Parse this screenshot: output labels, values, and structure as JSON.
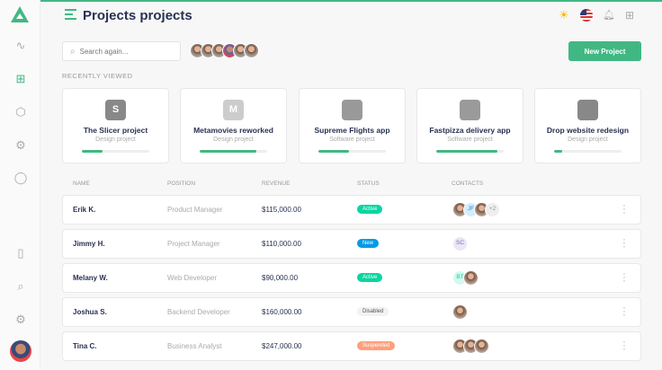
{
  "header": {
    "title": "Projects projects",
    "search_placeholder": "Search again...",
    "new_project": "New Project"
  },
  "recently_viewed_label": "RECENTLY VIEWED",
  "projects": [
    {
      "name": "The Slicer project",
      "type": "Design project",
      "icon": "S",
      "icon_color": "#888888",
      "progress": 31
    },
    {
      "name": "Metamovies reworked",
      "type": "Design project",
      "icon": "M",
      "icon_color": "#cccccc",
      "progress": 84
    },
    {
      "name": "Supreme Flights app",
      "type": "Software project",
      "icon": "",
      "icon_color": "#999999",
      "progress": 45
    },
    {
      "name": "Fastpizza delivery app",
      "type": "Software project",
      "icon": "",
      "icon_color": "#9a9a9a",
      "progress": 90
    },
    {
      "name": "Drop website redesign",
      "type": "Design project",
      "icon": "",
      "icon_color": "#888888",
      "progress": 12
    }
  ],
  "table": {
    "headers": [
      "NAME",
      "POSITION",
      "REVENUE",
      "STATUS",
      "CONTACTS"
    ],
    "rows": [
      {
        "name": "Erik K.",
        "position": "Product Manager",
        "revenue": "$115,000.00",
        "status": "Active",
        "status_color": "#06d6a0",
        "contacts": [
          "photo",
          "JF",
          "photo"
        ],
        "more": "+2"
      },
      {
        "name": "Jimmy H.",
        "position": "Project Manager",
        "revenue": "$110,000.00",
        "status": "New",
        "status_color": "#039be5",
        "contacts": [
          "SC"
        ],
        "more": ""
      },
      {
        "name": "Melany W.",
        "position": "Web Developer",
        "revenue": "$90,000.00",
        "status": "Active",
        "status_color": "#06d6a0",
        "contacts": [
          "BT",
          "photo"
        ],
        "more": ""
      },
      {
        "name": "Joshua S.",
        "position": "Backend Developer",
        "revenue": "$160,000.00",
        "status": "Disabled",
        "status_color": "#f2f2f2",
        "contacts": [
          "photo"
        ],
        "more": ""
      },
      {
        "name": "Tina C.",
        "position": "Business Analyst",
        "revenue": "$247,000.00",
        "status": "Suspended",
        "status_color": "#ff9f7a",
        "contacts": [
          "photo",
          "photo",
          "photo"
        ],
        "more": ""
      }
    ]
  },
  "colors": {
    "accent": "#41b883"
  }
}
